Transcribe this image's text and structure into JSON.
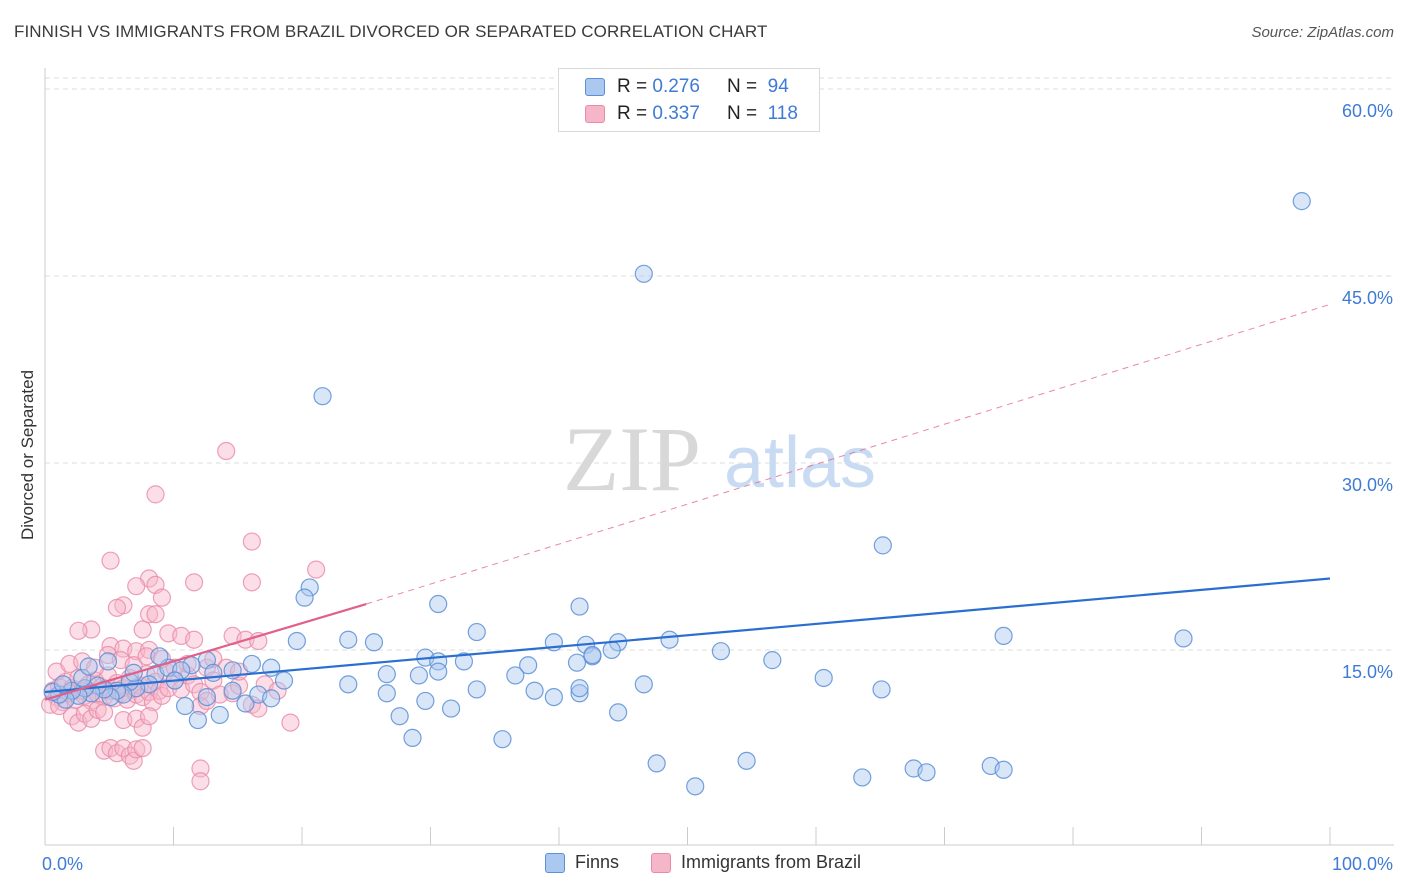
{
  "title": "FINNISH VS IMMIGRANTS FROM BRAZIL DIVORCED OR SEPARATED CORRELATION CHART",
  "source": "Source: ZipAtlas.com",
  "watermark": {
    "zip": "ZIP",
    "atlas": "atlas"
  },
  "legend": {
    "finns": {
      "r_label": "R =",
      "r_value": "0.276",
      "n_label": "N =",
      "n_value": "94"
    },
    "brazil": {
      "r_label": "R =",
      "r_value": "0.337",
      "n_label": "N =",
      "n_value": "118"
    }
  },
  "bottom_legend": {
    "finns": "Finns",
    "brazil": "Immigrants from Brazil"
  },
  "colors": {
    "finns_fill": "#aac8f0",
    "finns_stroke": "#5b8fd6",
    "finns_line": "#2a6fd0",
    "brazil_fill": "#f6b6c9",
    "brazil_stroke": "#e98aa8",
    "brazil_line": "#e0608a",
    "grid": "#dcdcdc",
    "axis_text": "#3d7bd6"
  },
  "chart_data": {
    "type": "scatter",
    "title": "FINNISH VS IMMIGRANTS FROM BRAZIL DIVORCED OR SEPARATED CORRELATION CHART",
    "xlabel": "",
    "ylabel": "Divorced or Separated",
    "xlim": [
      0,
      100
    ],
    "ylim": [
      0,
      60
    ],
    "x_tick_labels": [
      "0.0%",
      "100.0%"
    ],
    "y_ticks": [
      15,
      30,
      45,
      60
    ],
    "y_tick_labels": [
      "15.0%",
      "30.0%",
      "45.0%",
      "60.0%"
    ],
    "series": [
      {
        "name": "Finns",
        "r": 0.276,
        "n": 94,
        "trend": {
          "x0": 0,
          "y0": 12.0,
          "x1": 100,
          "y1": 20.9,
          "style": "solid"
        },
        "points": [
          [
            97.8,
            50.5
          ],
          [
            46.6,
            44.8
          ],
          [
            21.6,
            35.2
          ],
          [
            65.2,
            23.5
          ],
          [
            20.6,
            20.2
          ],
          [
            20.2,
            19.4
          ],
          [
            30.6,
            18.9
          ],
          [
            41.6,
            18.7
          ],
          [
            46.6,
            12.6
          ],
          [
            74.6,
            16.4
          ],
          [
            88.6,
            16.2
          ],
          [
            33.6,
            16.7
          ],
          [
            19.6,
            16.0
          ],
          [
            23.6,
            16.1
          ],
          [
            25.6,
            15.9
          ],
          [
            39.6,
            15.9
          ],
          [
            44.6,
            15.9
          ],
          [
            48.6,
            16.1
          ],
          [
            29.6,
            14.7
          ],
          [
            30.6,
            14.4
          ],
          [
            37.6,
            14.1
          ],
          [
            41.4,
            14.3
          ],
          [
            32.6,
            14.4
          ],
          [
            56.6,
            14.5
          ],
          [
            16.1,
            14.2
          ],
          [
            14.6,
            13.7
          ],
          [
            17.6,
            13.9
          ],
          [
            26.6,
            13.4
          ],
          [
            29.1,
            13.3
          ],
          [
            30.6,
            13.6
          ],
          [
            33.6,
            12.2
          ],
          [
            38.1,
            12.1
          ],
          [
            39.6,
            11.6
          ],
          [
            41.6,
            11.9
          ],
          [
            44.6,
            10.4
          ],
          [
            36.6,
            13.3
          ],
          [
            52.6,
            15.2
          ],
          [
            60.6,
            13.1
          ],
          [
            65.1,
            12.2
          ],
          [
            12.6,
            14.5
          ],
          [
            11.4,
            14.1
          ],
          [
            13.1,
            13.5
          ],
          [
            8.6,
            13.4
          ],
          [
            9.6,
            13.9
          ],
          [
            10.6,
            13.7
          ],
          [
            10.1,
            12.9
          ],
          [
            8.1,
            12.6
          ],
          [
            7.1,
            12.3
          ],
          [
            6.6,
            12.8
          ],
          [
            6.1,
            11.8
          ],
          [
            5.6,
            12.1
          ],
          [
            5.1,
            11.6
          ],
          [
            4.6,
            12.2
          ],
          [
            4.1,
            12.5
          ],
          [
            3.6,
            11.9
          ],
          [
            3.1,
            12.3
          ],
          [
            2.6,
            11.7
          ],
          [
            2.1,
            12.1
          ],
          [
            1.6,
            11.4
          ],
          [
            1.1,
            11.8
          ],
          [
            0.6,
            12.0
          ],
          [
            1.4,
            12.6
          ],
          [
            2.9,
            13.1
          ],
          [
            3.4,
            14.0
          ],
          [
            4.9,
            14.4
          ],
          [
            6.9,
            13.5
          ],
          [
            8.9,
            14.8
          ],
          [
            10.9,
            10.9
          ],
          [
            11.9,
            9.8
          ],
          [
            12.6,
            11.6
          ],
          [
            13.6,
            10.2
          ],
          [
            14.6,
            12.1
          ],
          [
            15.6,
            11.1
          ],
          [
            16.6,
            11.8
          ],
          [
            17.6,
            11.5
          ],
          [
            18.6,
            12.9
          ],
          [
            23.6,
            12.6
          ],
          [
            26.6,
            11.9
          ],
          [
            27.6,
            10.1
          ],
          [
            28.6,
            8.4
          ],
          [
            29.6,
            11.3
          ],
          [
            31.6,
            10.7
          ],
          [
            35.6,
            8.3
          ],
          [
            41.6,
            12.3
          ],
          [
            42.1,
            15.7
          ],
          [
            44.1,
            15.3
          ],
          [
            42.6,
            14.8
          ],
          [
            47.6,
            6.4
          ],
          [
            54.6,
            6.6
          ],
          [
            50.6,
            4.6
          ],
          [
            63.6,
            5.3
          ],
          [
            73.6,
            6.2
          ],
          [
            74.6,
            5.9
          ],
          [
            67.6,
            6.0
          ],
          [
            68.6,
            5.7
          ],
          [
            42.6,
            14.9
          ]
        ]
      },
      {
        "name": "Immigrants from Brazil",
        "r": 0.337,
        "n": 118,
        "trend": {
          "x0": 0,
          "y0": 11.4,
          "x1": 25,
          "y1": 18.9,
          "x2": 100,
          "y2": 42.4,
          "style": "solid then dashed"
        },
        "points": [
          [
            14.1,
            30.9
          ],
          [
            8.6,
            27.5
          ],
          [
            16.1,
            23.8
          ],
          [
            5.1,
            22.3
          ],
          [
            21.1,
            21.6
          ],
          [
            8.1,
            20.9
          ],
          [
            11.6,
            20.6
          ],
          [
            16.1,
            20.6
          ],
          [
            7.1,
            20.3
          ],
          [
            8.6,
            20.4
          ],
          [
            9.1,
            19.4
          ],
          [
            6.1,
            18.8
          ],
          [
            5.6,
            18.6
          ],
          [
            8.1,
            18.1
          ],
          [
            8.6,
            18.1
          ],
          [
            9.6,
            16.6
          ],
          [
            10.6,
            16.4
          ],
          [
            11.6,
            16.1
          ],
          [
            14.6,
            16.4
          ],
          [
            15.6,
            16.1
          ],
          [
            16.6,
            16.0
          ],
          [
            3.6,
            16.9
          ],
          [
            2.6,
            16.8
          ],
          [
            7.6,
            16.9
          ],
          [
            5.1,
            15.6
          ],
          [
            6.1,
            15.4
          ],
          [
            7.1,
            15.2
          ],
          [
            8.1,
            15.3
          ],
          [
            0.6,
            12.1
          ],
          [
            0.9,
            11.6
          ],
          [
            1.1,
            12.4
          ],
          [
            1.4,
            11.2
          ],
          [
            1.6,
            12.8
          ],
          [
            1.9,
            11.9
          ],
          [
            2.1,
            12.3
          ],
          [
            2.4,
            11.4
          ],
          [
            2.6,
            13.1
          ],
          [
            2.9,
            12.1
          ],
          [
            3.1,
            11.7
          ],
          [
            3.4,
            12.6
          ],
          [
            3.6,
            11.3
          ],
          [
            3.9,
            12.9
          ],
          [
            4.1,
            11.8
          ],
          [
            4.4,
            12.4
          ],
          [
            4.6,
            11.6
          ],
          [
            4.9,
            13.3
          ],
          [
            5.1,
            12.1
          ],
          [
            5.4,
            11.5
          ],
          [
            5.6,
            12.7
          ],
          [
            5.9,
            11.9
          ],
          [
            6.1,
            12.3
          ],
          [
            6.4,
            11.4
          ],
          [
            6.6,
            13.1
          ],
          [
            6.9,
            12.2
          ],
          [
            7.1,
            11.8
          ],
          [
            7.4,
            12.5
          ],
          [
            7.6,
            11.6
          ],
          [
            7.9,
            13.4
          ],
          [
            8.1,
            12.0
          ],
          [
            8.4,
            11.2
          ],
          [
            8.6,
            12.8
          ],
          [
            8.9,
            12.1
          ],
          [
            9.1,
            11.7
          ],
          [
            9.4,
            13.6
          ],
          [
            9.6,
            12.3
          ],
          [
            10.1,
            12.9
          ],
          [
            10.6,
            12.2
          ],
          [
            11.1,
            13.3
          ],
          [
            11.6,
            12.6
          ],
          [
            12.1,
            12.0
          ],
          [
            12.6,
            13.9
          ],
          [
            13.1,
            12.9
          ],
          [
            13.6,
            11.8
          ],
          [
            14.6,
            11.9
          ],
          [
            15.1,
            12.5
          ],
          [
            16.1,
            11.0
          ],
          [
            16.6,
            10.7
          ],
          [
            2.1,
            10.1
          ],
          [
            2.6,
            9.6
          ],
          [
            3.1,
            10.3
          ],
          [
            3.6,
            9.9
          ],
          [
            4.1,
            10.6
          ],
          [
            4.6,
            10.4
          ],
          [
            6.1,
            9.8
          ],
          [
            7.1,
            9.9
          ],
          [
            7.6,
            9.2
          ],
          [
            8.1,
            10.1
          ],
          [
            12.1,
            10.9
          ],
          [
            12.6,
            11.3
          ],
          [
            19.1,
            9.6
          ],
          [
            4.6,
            7.4
          ],
          [
            5.1,
            7.6
          ],
          [
            5.6,
            7.2
          ],
          [
            6.1,
            7.6
          ],
          [
            6.6,
            7.0
          ],
          [
            6.9,
            6.6
          ],
          [
            7.1,
            7.5
          ],
          [
            7.6,
            7.6
          ],
          [
            12.1,
            6.0
          ],
          [
            12.1,
            5.0
          ],
          [
            0.9,
            13.6
          ],
          [
            1.9,
            14.2
          ],
          [
            2.9,
            14.4
          ],
          [
            3.9,
            13.9
          ],
          [
            4.9,
            14.9
          ],
          [
            5.9,
            14.5
          ],
          [
            6.9,
            14.1
          ],
          [
            7.9,
            14.8
          ],
          [
            9.1,
            14.6
          ],
          [
            10.1,
            13.9
          ],
          [
            11.1,
            14.2
          ],
          [
            13.1,
            14.6
          ],
          [
            14.1,
            13.9
          ],
          [
            15.1,
            13.6
          ],
          [
            17.1,
            12.6
          ],
          [
            18.1,
            12.1
          ],
          [
            0.4,
            11.0
          ],
          [
            1.1,
            10.9
          ]
        ]
      }
    ]
  }
}
